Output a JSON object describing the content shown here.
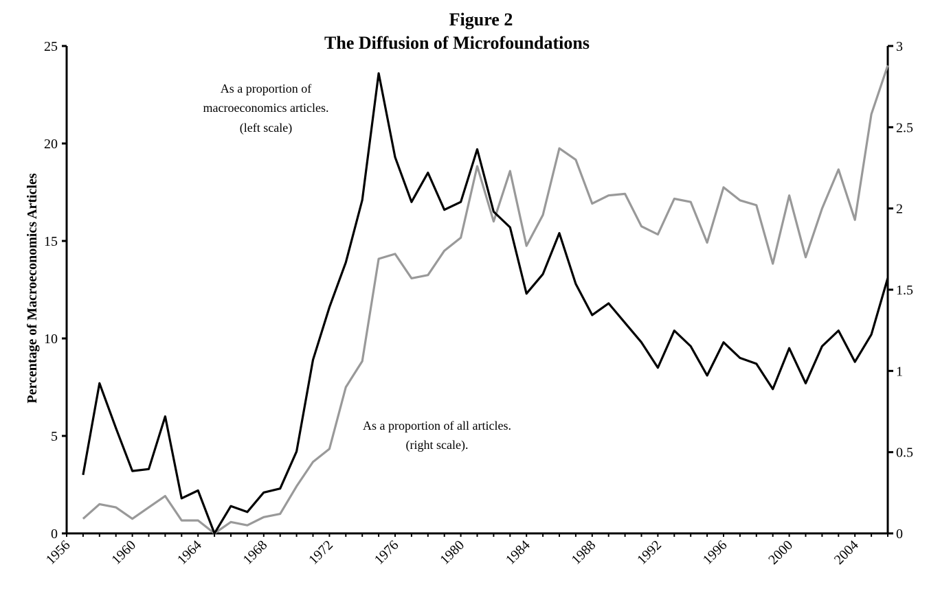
{
  "chart_data": {
    "type": "line",
    "title": "Figure 2",
    "subtitle": "The Diffusion of Microfoundations",
    "xlabel": "",
    "ylabel": "Percentage of Macroeconomics Articles",
    "y2label": "",
    "xlim": [
      1956,
      2006
    ],
    "ylim": [
      0,
      25
    ],
    "y2lim": [
      0,
      3
    ],
    "x_ticks": [
      "1956",
      "1960",
      "1964",
      "1968",
      "1972",
      "1976",
      "1980",
      "1984",
      "1988",
      "1992",
      "1996",
      "2000",
      "2004"
    ],
    "y_ticks": [
      "0",
      "5",
      "10",
      "15",
      "20",
      "25"
    ],
    "y2_ticks": [
      "0",
      "0.5",
      "1",
      "1.5",
      "2",
      "2.5",
      "3"
    ],
    "grid": false,
    "x": [
      1957,
      1958,
      1959,
      1960,
      1961,
      1962,
      1963,
      1964,
      1965,
      1966,
      1967,
      1968,
      1969,
      1970,
      1971,
      1972,
      1973,
      1974,
      1975,
      1976,
      1977,
      1978,
      1979,
      1980,
      1981,
      1982,
      1983,
      1984,
      1985,
      1986,
      1987,
      1988,
      1989,
      1990,
      1991,
      1992,
      1993,
      1994,
      1995,
      1996,
      1997,
      1998,
      1999,
      2000,
      2001,
      2002,
      2003,
      2004,
      2005,
      2006
    ],
    "series": [
      {
        "axis": "left",
        "color": "#000000",
        "values": [
          3.0,
          7.7,
          5.4,
          3.2,
          3.3,
          6.0,
          1.8,
          2.2,
          0.0,
          1.4,
          1.1,
          2.1,
          2.3,
          4.2,
          8.9,
          11.6,
          13.9,
          17.1,
          23.6,
          19.3,
          17.0,
          18.5,
          16.6,
          17.0,
          19.7,
          16.5,
          15.7,
          12.3,
          13.3,
          15.4,
          12.8,
          11.2,
          11.8,
          10.8,
          9.8,
          8.5,
          10.4,
          9.6,
          8.1,
          9.8,
          9.0,
          8.7,
          7.4,
          9.5,
          7.7,
          9.6,
          10.4,
          8.8,
          10.2,
          13.1
        ]
      },
      {
        "axis": "right",
        "color": "#999999",
        "values": [
          0.09,
          0.18,
          0.16,
          0.09,
          0.16,
          0.23,
          0.08,
          0.08,
          0.0,
          0.07,
          0.05,
          0.1,
          0.12,
          0.29,
          0.44,
          0.52,
          0.9,
          1.06,
          1.69,
          1.72,
          1.57,
          1.59,
          1.74,
          1.82,
          2.26,
          1.92,
          2.23,
          1.77,
          1.96,
          2.37,
          2.3,
          2.03,
          2.08,
          2.09,
          1.89,
          1.84,
          2.06,
          2.04,
          1.79,
          2.13,
          2.05,
          2.02,
          1.66,
          2.08,
          1.7,
          2.0,
          2.24,
          1.93,
          2.58,
          2.88
        ]
      }
    ],
    "annotations": {
      "left_series": [
        "As a proportion of",
        "macroeconomics articles.",
        "(left scale)"
      ],
      "right_series": [
        "As a proportion of all  articles.",
        "(right scale)."
      ]
    }
  }
}
